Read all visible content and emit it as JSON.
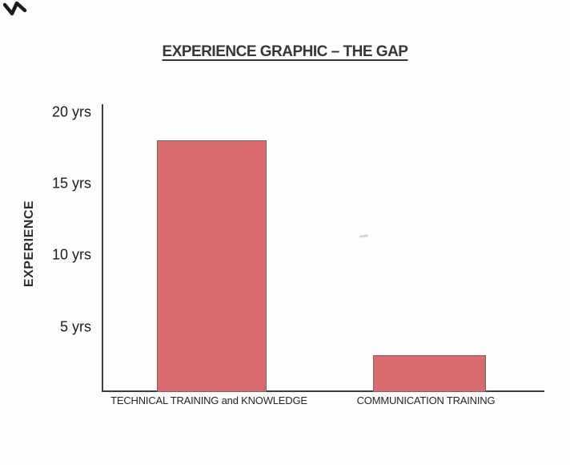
{
  "chart_data": {
    "type": "bar",
    "title": "EXPERIENCE GRAPHIC – THE GAP",
    "categories": [
      "TECHNICAL TRAINING and KNOWLEDGE",
      "COMMUNICATION TRAINING"
    ],
    "values": [
      18,
      3
    ],
    "xlabel": "",
    "ylabel": "EXPERIENCE",
    "ylim": [
      0,
      20
    ],
    "y_ticks": [
      {
        "value": 20,
        "label": "20 yrs"
      },
      {
        "value": 15,
        "label": "15 yrs"
      },
      {
        "value": 10,
        "label": "10 yrs"
      },
      {
        "value": 5,
        "label": "5 yrs"
      }
    ],
    "grid": false,
    "legend": false,
    "unit": "yrs",
    "bar_color": "#d96a6e",
    "bar_border_color": "#6e6763",
    "axis_color": "#3d3d3d"
  }
}
